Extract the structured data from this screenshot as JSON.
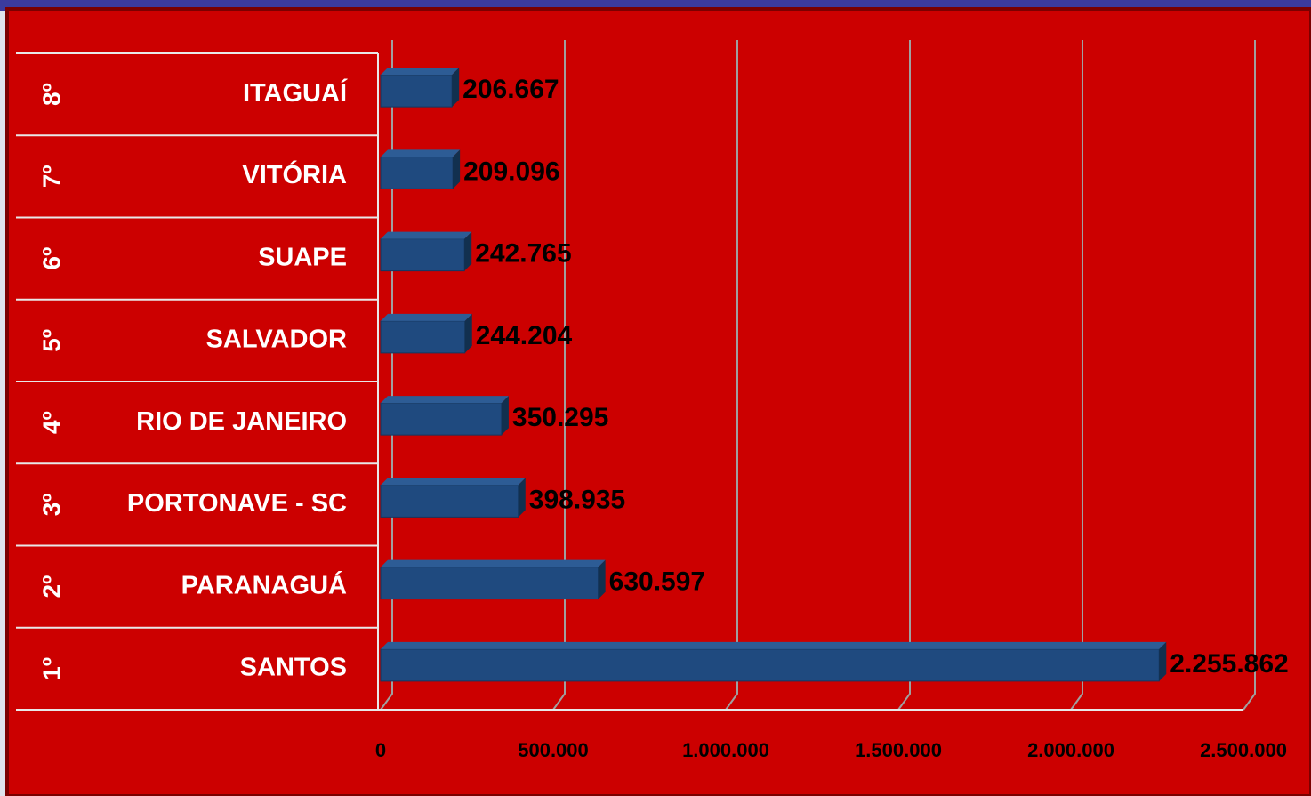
{
  "chart_data": {
    "type": "bar",
    "orientation": "horizontal",
    "ranks": [
      "8º",
      "7º",
      "6º",
      "5º",
      "4º",
      "3º",
      "2º",
      "1º"
    ],
    "categories": [
      "ITAGUAÍ",
      "VITÓRIA",
      "SUAPE",
      "SALVADOR",
      "RIO DE JANEIRO",
      "PORTONAVE - SC",
      "PARANAGUÁ",
      "SANTOS"
    ],
    "values": [
      206667,
      209096,
      242765,
      244204,
      350295,
      398935,
      630597,
      2255862
    ],
    "value_labels": [
      "206.667",
      "209.096",
      "242.765",
      "244.204",
      "350.295",
      "398.935",
      "630.597",
      "2.255.862"
    ],
    "color": "#1f4a7f",
    "xlim": [
      0,
      2500000
    ],
    "xticks": [
      0,
      {
        "value": 500000,
        "label": "500.000"
      },
      {
        "value": 1000000,
        "label": "1.000.000"
      },
      {
        "value": 1500000,
        "label": "1.500.000"
      },
      {
        "value": 2000000,
        "label": "2.000.000"
      },
      {
        "value": 2500000,
        "label": "2.500.000"
      }
    ],
    "grid": true
  }
}
